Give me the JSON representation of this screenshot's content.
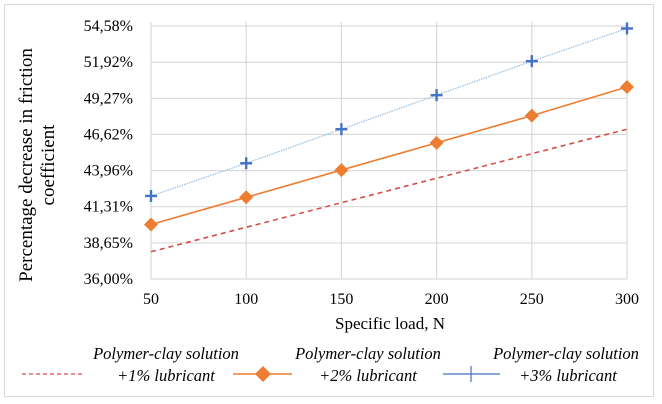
{
  "chart_data": {
    "type": "line",
    "title": "",
    "xlabel": "Specific load, N",
    "ylabel_lines": [
      "Percentage decrease in friction",
      "coefficient"
    ],
    "x": [
      50,
      100,
      150,
      200,
      250,
      300
    ],
    "x_tick_labels": [
      "50",
      "100",
      "150",
      "200",
      "250",
      "300"
    ],
    "ylim": [
      36.0,
      54.58
    ],
    "y_ticks": [
      36.0,
      38.65,
      41.31,
      43.96,
      46.62,
      49.27,
      51.92,
      54.58
    ],
    "y_tick_labels": [
      "36,00%",
      "38,65%",
      "41,31%",
      "43,96%",
      "46,62%",
      "49,27%",
      "51,92%",
      "54,58%"
    ],
    "grid": true,
    "legend_position": "bottom",
    "series": [
      {
        "name_line1": "Polymer-clay solution",
        "name_line2": "+1% lubricant",
        "values": [
          38.0,
          39.8,
          41.6,
          43.4,
          45.2,
          47.0
        ],
        "color": "#d0504a",
        "line_style": "dashed",
        "marker": "none"
      },
      {
        "name_line1": "Polymer-clay solution",
        "name_line2": "+2% lubricant",
        "values": [
          40.0,
          42.0,
          44.0,
          46.0,
          48.0,
          50.1
        ],
        "color": "#ed7d31",
        "line_style": "solid",
        "marker": "diamond"
      },
      {
        "name_line1": "Polymer-clay solution",
        "name_line2": "+3% lubricant",
        "values": [
          42.1,
          44.5,
          47.0,
          49.5,
          52.0,
          54.4
        ],
        "color": "#4472c4",
        "line_color": "#9dc3e6",
        "line_style": "dotted",
        "marker": "plus"
      }
    ]
  }
}
